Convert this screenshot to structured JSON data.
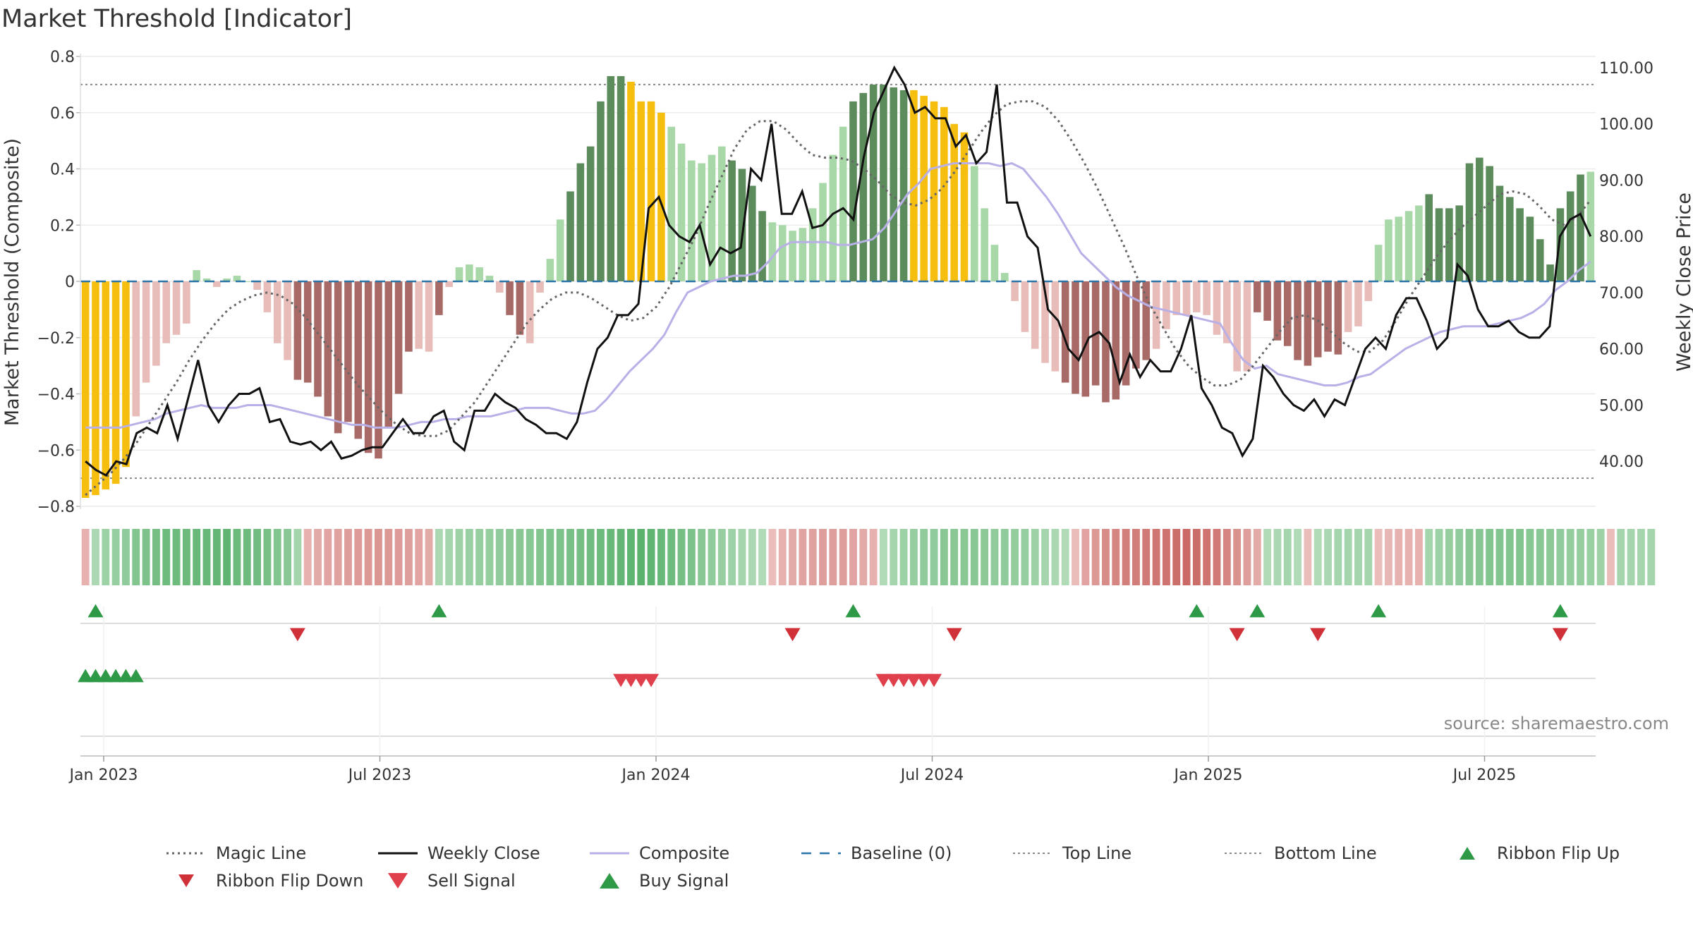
{
  "title": "Market Threshold [Indicator]",
  "source": "source: sharemaestro.com",
  "colors": {
    "yellow": "#f6bf10",
    "dark_green": "#5c8c5c",
    "light_green": "#a8d8a8",
    "dark_red": "#a86a66",
    "light_red": "#e8bcb8",
    "weekly_close": "#111111",
    "composite": "#b8b0e6",
    "magic": "#666666",
    "baseline": "#2a74a8",
    "buy": "#2e9a48",
    "sell": "#e0404c"
  },
  "chart_data": {
    "type": "bar",
    "title": "Market Threshold [Indicator]",
    "ylabel": "Market Threshold (Composite)",
    "ylabel_right": "Weekly Close Price",
    "ylim": [
      -0.8,
      0.8
    ],
    "ylim_right": [
      32,
      112
    ],
    "yticks": [
      "0.8",
      "0.6",
      "0.4",
      "0.2",
      "0",
      "−0.2",
      "−0.4",
      "−0.6",
      "−0.8"
    ],
    "yticks_right": [
      "110.00",
      "100.00",
      "90.00",
      "80.00",
      "70.00",
      "60.00",
      "50.00",
      "40.00"
    ],
    "xticks": [
      "Jan 2023",
      "Jul 2023",
      "Jan 2024",
      "Jul 2024",
      "Jan 2025",
      "Jul 2025"
    ],
    "x_start": "2022-12-19",
    "top_line": 0.7,
    "bottom_line": -0.7,
    "composite_bars": [
      -0.77,
      -0.76,
      -0.74,
      -0.72,
      -0.66,
      -0.48,
      -0.36,
      -0.3,
      -0.22,
      -0.19,
      -0.15,
      0.04,
      0.01,
      -0.02,
      0.01,
      0.02,
      0.0,
      -0.03,
      -0.11,
      -0.22,
      -0.28,
      -0.35,
      -0.36,
      -0.41,
      -0.48,
      -0.54,
      -0.5,
      -0.56,
      -0.61,
      -0.63,
      -0.52,
      -0.4,
      -0.25,
      -0.24,
      -0.25,
      -0.12,
      -0.02,
      0.05,
      0.06,
      0.05,
      0.02,
      -0.04,
      -0.12,
      -0.19,
      -0.22,
      -0.04,
      0.08,
      0.22,
      0.32,
      0.42,
      0.48,
      0.64,
      0.73,
      0.73,
      0.71,
      0.64,
      0.64,
      0.6,
      0.55,
      0.49,
      0.43,
      0.42,
      0.45,
      0.48,
      0.43,
      0.4,
      0.34,
      0.25,
      0.21,
      0.2,
      0.18,
      0.19,
      0.26,
      0.35,
      0.45,
      0.55,
      0.64,
      0.67,
      0.7,
      0.7,
      0.69,
      0.68,
      0.68,
      0.66,
      0.64,
      0.62,
      0.56,
      0.53,
      0.41,
      0.26,
      0.13,
      0.03,
      -0.07,
      -0.18,
      -0.24,
      -0.29,
      -0.32,
      -0.36,
      -0.4,
      -0.41,
      -0.37,
      -0.43,
      -0.42,
      -0.37,
      -0.31,
      -0.28,
      -0.24,
      -0.17,
      -0.12,
      -0.12,
      -0.11,
      -0.12,
      -0.19,
      -0.22,
      -0.32,
      -0.32,
      -0.11,
      -0.14,
      -0.21,
      -0.23,
      -0.28,
      -0.3,
      -0.27,
      -0.25,
      -0.26,
      -0.18,
      -0.16,
      -0.07,
      0.13,
      0.22,
      0.23,
      0.25,
      0.27,
      0.31,
      0.26,
      0.26,
      0.27,
      0.42,
      0.44,
      0.41,
      0.34,
      0.3,
      0.26,
      0.23,
      0.15,
      0.06,
      0.26,
      0.32,
      0.38,
      0.39
    ],
    "bar_classes": "YYYYYLLLLLLLLLLLLLLLLDDDDDDDDDDDDLLDLLLLLLDDLLLLDDDDDDYYYYLLLLLLDDDDLLLLLLLLDDDDDDYYYYYYLLLLLLLLLDDDDDDDDDLLLLLLLLLLDDDDDDDDDLLLLLLLLDDDDDDDDDDDDDDDDLLLLLLLDDDD",
    "weekly_close": [
      40.0,
      38.5,
      37.5,
      40.0,
      39.5,
      45.0,
      46.0,
      45.0,
      50.0,
      44.0,
      51.0,
      58.0,
      50.0,
      47.0,
      50.0,
      52.0,
      52.0,
      53.0,
      47.0,
      47.5,
      43.5,
      43.0,
      43.5,
      42.0,
      43.5,
      40.5,
      41.0,
      42.0,
      42.5,
      42.5,
      45.0,
      47.5,
      45.0,
      45.0,
      48.0,
      49.0,
      43.5,
      42.0,
      49.0,
      49.0,
      52.0,
      50.5,
      49.5,
      47.5,
      46.5,
      45.0,
      45.0,
      44.0,
      47.0,
      54.0,
      60.0,
      62.0,
      66.0,
      66.0,
      68.0,
      85.0,
      87.0,
      82.0,
      80.0,
      79.0,
      82.0,
      75.0,
      78.0,
      77.0,
      78.0,
      92.0,
      90.0,
      100.0,
      84.0,
      84.0,
      88.0,
      81.5,
      82.0,
      84.0,
      85.0,
      83.0,
      94.0,
      102.0,
      106.0,
      110.0,
      107.0,
      102.0,
      103.0,
      101.0,
      101.0,
      96.0,
      98.0,
      93.0,
      95.0,
      107.0,
      86.0,
      86.0,
      80.0,
      78.0,
      67.0,
      65.0,
      60.0,
      58.0,
      62.0,
      63.0,
      61.0,
      54.0,
      59.0,
      55.0,
      58.0,
      56.0,
      56.0,
      60.0,
      66.0,
      53.0,
      50.0,
      46.0,
      45.0,
      41.0,
      44.0,
      57.0,
      55.0,
      52.0,
      50.0,
      49.0,
      51.0,
      48.0,
      51.0,
      50.0,
      55.0,
      60.0,
      62.0,
      60.0,
      66.0,
      69.0,
      69.0,
      65.0,
      60.0,
      62.0,
      75.0,
      73.0,
      67.0,
      64.0,
      64.0,
      65.0,
      63.0,
      62.0,
      62.0,
      64.0,
      80.0,
      83.0,
      84.0,
      80.0
    ],
    "composite_line": [
      -0.52,
      -0.52,
      -0.52,
      -0.52,
      -0.51,
      -0.5,
      -0.49,
      -0.47,
      -0.46,
      -0.45,
      -0.44,
      -0.45,
      -0.45,
      -0.45,
      -0.44,
      -0.44,
      -0.44,
      -0.45,
      -0.46,
      -0.47,
      -0.48,
      -0.49,
      -0.5,
      -0.51,
      -0.51,
      -0.52,
      -0.52,
      -0.52,
      -0.51,
      -0.5,
      -0.5,
      -0.49,
      -0.49,
      -0.48,
      -0.48,
      -0.48,
      -0.47,
      -0.46,
      -0.45,
      -0.45,
      -0.45,
      -0.46,
      -0.47,
      -0.47,
      -0.46,
      -0.42,
      -0.37,
      -0.32,
      -0.28,
      -0.24,
      -0.19,
      -0.11,
      -0.04,
      -0.02,
      0.0,
      0.01,
      0.02,
      0.02,
      0.03,
      0.07,
      0.12,
      0.14,
      0.14,
      0.14,
      0.14,
      0.13,
      0.13,
      0.14,
      0.15,
      0.19,
      0.25,
      0.31,
      0.35,
      0.4,
      0.41,
      0.42,
      0.42,
      0.42,
      0.42,
      0.41,
      0.42,
      0.4,
      0.35,
      0.3,
      0.24,
      0.17,
      0.1,
      0.06,
      0.02,
      -0.02,
      -0.05,
      -0.07,
      -0.09,
      -0.1,
      -0.11,
      -0.12,
      -0.13,
      -0.14,
      -0.15,
      -0.22,
      -0.28,
      -0.31,
      -0.3,
      -0.33,
      -0.34,
      -0.35,
      -0.36,
      -0.37,
      -0.37,
      -0.36,
      -0.34,
      -0.33,
      -0.3,
      -0.27,
      -0.24,
      -0.22,
      -0.2,
      -0.18,
      -0.17,
      -0.16,
      -0.16,
      -0.16,
      -0.15,
      -0.14,
      -0.13,
      -0.11,
      -0.08,
      -0.03,
      0.0,
      0.04,
      0.07
    ],
    "magic_line": [
      -0.76,
      -0.72,
      -0.68,
      -0.63,
      -0.57,
      -0.5,
      -0.43,
      -0.36,
      -0.28,
      -0.21,
      -0.15,
      -0.1,
      -0.07,
      -0.05,
      -0.04,
      -0.05,
      -0.08,
      -0.13,
      -0.19,
      -0.25,
      -0.31,
      -0.37,
      -0.42,
      -0.47,
      -0.51,
      -0.54,
      -0.55,
      -0.55,
      -0.53,
      -0.48,
      -0.43,
      -0.36,
      -0.29,
      -0.22,
      -0.15,
      -0.1,
      -0.06,
      -0.04,
      -0.04,
      -0.06,
      -0.09,
      -0.12,
      -0.14,
      -0.13,
      -0.09,
      -0.02,
      0.07,
      0.16,
      0.27,
      0.37,
      0.47,
      0.54,
      0.57,
      0.57,
      0.54,
      0.49,
      0.45,
      0.44,
      0.44,
      0.43,
      0.4,
      0.36,
      0.31,
      0.28,
      0.27,
      0.29,
      0.33,
      0.39,
      0.46,
      0.53,
      0.59,
      0.63,
      0.64,
      0.64,
      0.62,
      0.57,
      0.5,
      0.42,
      0.33,
      0.23,
      0.13,
      0.02,
      -0.08,
      -0.16,
      -0.24,
      -0.3,
      -0.34,
      -0.37,
      -0.37,
      -0.35,
      -0.3,
      -0.24,
      -0.18,
      -0.13,
      -0.12,
      -0.14,
      -0.18,
      -0.22,
      -0.25,
      -0.25,
      -0.21,
      -0.14,
      -0.06,
      0.01,
      0.08,
      0.14,
      0.19,
      0.23,
      0.27,
      0.31,
      0.32,
      0.31,
      0.27,
      0.22,
      0.2,
      0.23,
      0.29
    ],
    "ribbon": [
      -0.3,
      0.25,
      0.35,
      0.4,
      0.45,
      0.55,
      0.6,
      0.65,
      0.7,
      0.7,
      0.72,
      0.75,
      0.75,
      0.78,
      0.8,
      0.72,
      0.7,
      0.68,
      0.62,
      0.55,
      0.5,
      0.3,
      -0.3,
      -0.35,
      -0.4,
      -0.42,
      -0.45,
      -0.48,
      -0.5,
      -0.52,
      -0.5,
      -0.48,
      -0.45,
      -0.4,
      -0.35,
      0.25,
      0.3,
      0.35,
      0.38,
      0.4,
      0.42,
      0.45,
      0.48,
      0.5,
      0.52,
      0.55,
      0.58,
      0.6,
      0.62,
      0.65,
      0.68,
      0.7,
      0.75,
      0.78,
      0.82,
      0.85,
      0.8,
      0.75,
      0.7,
      0.65,
      0.6,
      0.5,
      0.45,
      0.4,
      0.35,
      0.3,
      0.25,
      0.2,
      -0.2,
      -0.3,
      -0.35,
      -0.4,
      -0.42,
      -0.45,
      -0.45,
      -0.45,
      -0.4,
      -0.35,
      -0.3,
      0.2,
      0.3,
      0.35,
      0.4,
      0.45,
      0.45,
      0.5,
      0.5,
      0.5,
      0.5,
      0.48,
      0.45,
      0.45,
      0.42,
      0.4,
      0.35,
      0.3,
      0.25,
      0.2,
      -0.2,
      -0.4,
      -0.5,
      -0.6,
      -0.65,
      -0.7,
      -0.72,
      -0.75,
      -0.78,
      -0.8,
      -0.85,
      -0.88,
      -0.85,
      -0.8,
      -0.75,
      -0.65,
      -0.55,
      -0.45,
      -0.35,
      0.2,
      0.25,
      0.3,
      0.2,
      -0.2,
      0.2,
      0.25,
      0.3,
      0.3,
      0.3,
      0.3,
      -0.2,
      -0.25,
      -0.3,
      -0.3,
      -0.3,
      0.3,
      0.35,
      0.4,
      0.45,
      0.5,
      0.52,
      0.55,
      0.55,
      0.55,
      0.55,
      0.52,
      0.5,
      0.48,
      0.45,
      0.42,
      0.4,
      0.38,
      0.35,
      -0.2,
      0.3,
      0.3,
      0.3,
      0.3
    ],
    "ribbon_flip_up": [
      "2022-12-26",
      "2023-08-21",
      "2024-06-03",
      "2025-01-27",
      "2025-03-10",
      "2025-06-02",
      "2025-10-06"
    ],
    "ribbon_flip_down": [
      "2023-05-15",
      "2024-04-22",
      "2024-08-12",
      "2025-02-24",
      "2025-04-21",
      "2025-10-06"
    ],
    "buy_signals": [
      "2022-12-19",
      "2022-12-26",
      "2023-01-02",
      "2023-01-09",
      "2023-01-16",
      "2023-01-23"
    ],
    "sell_signals": [
      "2023-12-25",
      "2024-01-01",
      "2024-01-08",
      "2024-01-15",
      "2024-06-24",
      "2024-07-01",
      "2024-07-08",
      "2024-07-15",
      "2024-07-22",
      "2024-07-29"
    ],
    "legend": [
      {
        "label": "Magic Line",
        "kind": "dotted"
      },
      {
        "label": "Weekly Close",
        "kind": "solid"
      },
      {
        "label": "Composite",
        "kind": "lilac"
      },
      {
        "label": "Baseline (0)",
        "kind": "dashed"
      },
      {
        "label": "Top Line",
        "kind": "grey-dash"
      },
      {
        "label": "Bottom Line",
        "kind": "grey-dash"
      },
      {
        "label": "Ribbon Flip Up",
        "kind": "tri-up"
      },
      {
        "label": "Ribbon Flip Down",
        "kind": "tri-down-dark"
      },
      {
        "label": "Sell Signal",
        "kind": "tri-down-red"
      },
      {
        "label": "Buy Signal",
        "kind": "tri-up-green"
      }
    ]
  }
}
